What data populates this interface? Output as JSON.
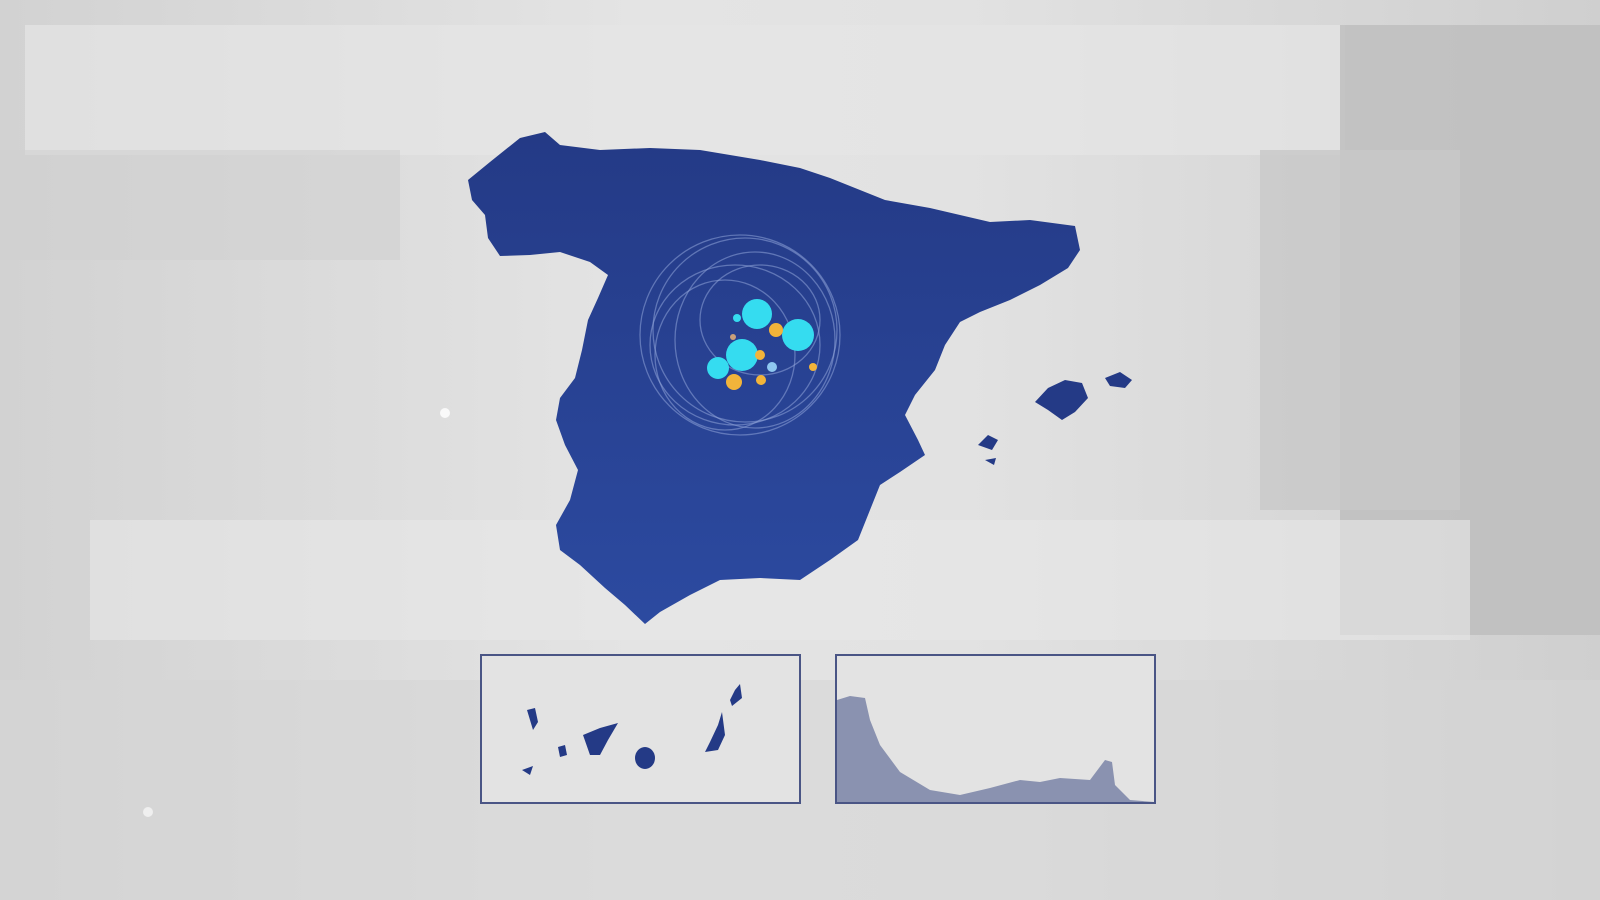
{
  "map": {
    "region": "Spain",
    "insets": [
      "canary-islands",
      "ceuta-melilla-coast"
    ],
    "colors": {
      "land": "#243a86",
      "land_light": "#2c4aa0",
      "inset_land": "#8a92b0",
      "inset_border": "#4a5585",
      "marker_cyan": "#35dcf0",
      "marker_orange": "#f2b43a",
      "background": "#dcdcdc"
    }
  }
}
